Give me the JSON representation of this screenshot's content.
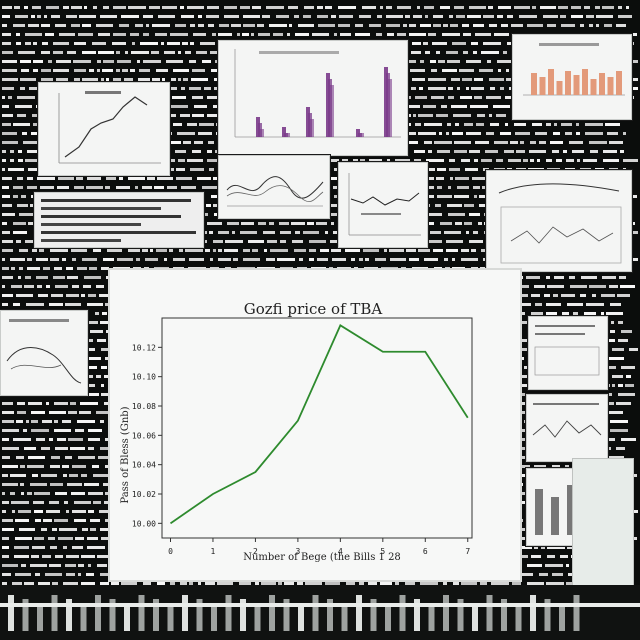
{
  "colors": {
    "background": "#0b0d0c",
    "panel": "#f4f5f4",
    "line": "#2e8b2e",
    "bars": "#7a3a8a",
    "orange_bars": "#e39a7a"
  },
  "main_chart": {
    "title": "Gozfi price of TBA",
    "xlabel": "Number of Bege (the Bills 1 28",
    "ylabel": "Pass of Bless (Gnb)"
  },
  "chart_data": {
    "type": "line",
    "title": "Gozfi price of TBA",
    "xlabel": "Number of Bege (the Bills 1 28",
    "ylabel": "Pass of Bless (Gnb)",
    "x_tick_labels": [
      "0",
      "1",
      "2",
      "3",
      "4",
      "5",
      "6",
      "7"
    ],
    "y_tick_labels": [
      "10.00",
      "10.02",
      "10.04",
      "10.06",
      "10.08",
      "10.10",
      "10.12"
    ],
    "x": [
      0,
      1,
      2,
      3,
      4,
      5,
      6,
      7
    ],
    "series": [
      {
        "values": [
          10.0,
          10.02,
          10.035,
          10.07,
          10.135,
          10.117,
          10.117,
          10.072
        ]
      }
    ],
    "xlim": [
      -0.2,
      7.1
    ],
    "ylim": [
      9.99,
      10.14
    ],
    "grid": false
  }
}
